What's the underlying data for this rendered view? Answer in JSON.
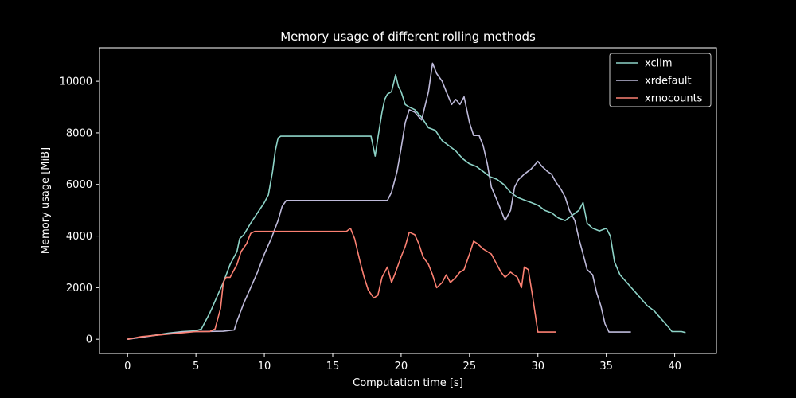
{
  "chart_data": {
    "type": "line",
    "title": "Memory usage of different rolling methods",
    "xlabel": "Computation time [s]",
    "ylabel": "Memory usage [MiB]",
    "xlim": [
      -2.05,
      43.05
    ],
    "ylim": [
      -550,
      11300
    ],
    "xticks": [
      0,
      5,
      10,
      15,
      20,
      25,
      30,
      35,
      40
    ],
    "yticks": [
      0,
      2000,
      4000,
      6000,
      8000,
      10000
    ],
    "grid": false,
    "legend_position": "top-right",
    "series": [
      {
        "name": "xclim",
        "color": "#8dd3c7",
        "points": [
          [
            0,
            0
          ],
          [
            1,
            80
          ],
          [
            2,
            160
          ],
          [
            3,
            240
          ],
          [
            4,
            300
          ],
          [
            5,
            330
          ],
          [
            5.4,
            400
          ],
          [
            6,
            1000
          ],
          [
            6.5,
            1600
          ],
          [
            7,
            2200
          ],
          [
            7.5,
            2900
          ],
          [
            8,
            3400
          ],
          [
            8.2,
            3900
          ],
          [
            8.5,
            4050
          ],
          [
            9,
            4500
          ],
          [
            9.5,
            4900
          ],
          [
            10,
            5300
          ],
          [
            10.3,
            5600
          ],
          [
            10.6,
            6500
          ],
          [
            10.8,
            7300
          ],
          [
            11,
            7800
          ],
          [
            11.2,
            7870
          ],
          [
            12,
            7870
          ],
          [
            14,
            7870
          ],
          [
            16,
            7870
          ],
          [
            17.8,
            7870
          ],
          [
            18.1,
            7100
          ],
          [
            18.3,
            7800
          ],
          [
            18.6,
            8800
          ],
          [
            18.8,
            9300
          ],
          [
            19,
            9500
          ],
          [
            19.3,
            9600
          ],
          [
            19.6,
            10250
          ],
          [
            19.8,
            9800
          ],
          [
            20,
            9600
          ],
          [
            20.3,
            9100
          ],
          [
            20.6,
            9000
          ],
          [
            21,
            8900
          ],
          [
            21.5,
            8600
          ],
          [
            22,
            8200
          ],
          [
            22.5,
            8100
          ],
          [
            23,
            7700
          ],
          [
            23.5,
            7500
          ],
          [
            24,
            7300
          ],
          [
            24.5,
            7000
          ],
          [
            25,
            6800
          ],
          [
            25.5,
            6700
          ],
          [
            26,
            6500
          ],
          [
            26.5,
            6300
          ],
          [
            27,
            6200
          ],
          [
            27.5,
            6000
          ],
          [
            28,
            5700
          ],
          [
            28.5,
            5500
          ],
          [
            29,
            5400
          ],
          [
            29.5,
            5300
          ],
          [
            30,
            5200
          ],
          [
            30.5,
            5000
          ],
          [
            31,
            4900
          ],
          [
            31.5,
            4700
          ],
          [
            32,
            4600
          ],
          [
            32.5,
            4800
          ],
          [
            33,
            5000
          ],
          [
            33.3,
            5300
          ],
          [
            33.6,
            4500
          ],
          [
            34,
            4300
          ],
          [
            34.5,
            4200
          ],
          [
            35,
            4300
          ],
          [
            35.3,
            4000
          ],
          [
            35.6,
            3000
          ],
          [
            36,
            2500
          ],
          [
            36.5,
            2200
          ],
          [
            37,
            1900
          ],
          [
            37.5,
            1600
          ],
          [
            38,
            1300
          ],
          [
            38.5,
            1100
          ],
          [
            39,
            800
          ],
          [
            39.5,
            500
          ],
          [
            39.8,
            300
          ],
          [
            40.5,
            300
          ],
          [
            40.8,
            260
          ]
        ]
      },
      {
        "name": "xrdefault",
        "color": "#bebada",
        "points": [
          [
            0,
            0
          ],
          [
            2,
            150
          ],
          [
            4,
            280
          ],
          [
            5,
            300
          ],
          [
            7,
            310
          ],
          [
            7.8,
            360
          ],
          [
            8,
            700
          ],
          [
            8.5,
            1400
          ],
          [
            9,
            2000
          ],
          [
            9.5,
            2600
          ],
          [
            10,
            3300
          ],
          [
            10.5,
            3900
          ],
          [
            11,
            4600
          ],
          [
            11.3,
            5150
          ],
          [
            11.6,
            5380
          ],
          [
            13,
            5380
          ],
          [
            15,
            5380
          ],
          [
            17,
            5380
          ],
          [
            19,
            5380
          ],
          [
            19.3,
            5700
          ],
          [
            19.7,
            6500
          ],
          [
            20,
            7400
          ],
          [
            20.3,
            8400
          ],
          [
            20.6,
            8900
          ],
          [
            21,
            8800
          ],
          [
            21.5,
            8500
          ],
          [
            22,
            9600
          ],
          [
            22.3,
            10700
          ],
          [
            22.6,
            10300
          ],
          [
            23,
            10000
          ],
          [
            23.3,
            9600
          ],
          [
            23.7,
            9100
          ],
          [
            24,
            9300
          ],
          [
            24.3,
            9100
          ],
          [
            24.6,
            9400
          ],
          [
            25,
            8400
          ],
          [
            25.3,
            7900
          ],
          [
            25.7,
            7900
          ],
          [
            26,
            7500
          ],
          [
            26.3,
            6800
          ],
          [
            26.6,
            5900
          ],
          [
            27,
            5400
          ],
          [
            27.3,
            5000
          ],
          [
            27.6,
            4600
          ],
          [
            28,
            5000
          ],
          [
            28.3,
            5900
          ],
          [
            28.6,
            6200
          ],
          [
            29,
            6400
          ],
          [
            29.5,
            6600
          ],
          [
            30,
            6900
          ],
          [
            30.3,
            6700
          ],
          [
            30.7,
            6500
          ],
          [
            31,
            6400
          ],
          [
            31.3,
            6100
          ],
          [
            31.7,
            5800
          ],
          [
            32,
            5500
          ],
          [
            32.3,
            5000
          ],
          [
            32.7,
            4600
          ],
          [
            33,
            3900
          ],
          [
            33.3,
            3300
          ],
          [
            33.6,
            2700
          ],
          [
            34,
            2500
          ],
          [
            34.3,
            1800
          ],
          [
            34.6,
            1300
          ],
          [
            34.9,
            600
          ],
          [
            35.2,
            280
          ],
          [
            36.8,
            280
          ]
        ]
      },
      {
        "name": "xrnocounts",
        "color": "#fb8072",
        "points": [
          [
            0,
            0
          ],
          [
            1,
            100
          ],
          [
            2,
            150
          ],
          [
            3,
            200
          ],
          [
            4,
            250
          ],
          [
            5,
            300
          ],
          [
            6,
            300
          ],
          [
            6.4,
            400
          ],
          [
            6.8,
            1200
          ],
          [
            7,
            2200
          ],
          [
            7.2,
            2400
          ],
          [
            7.5,
            2400
          ],
          [
            8,
            2900
          ],
          [
            8.3,
            3400
          ],
          [
            8.7,
            3700
          ],
          [
            9,
            4100
          ],
          [
            9.3,
            4180
          ],
          [
            10,
            4180
          ],
          [
            12,
            4180
          ],
          [
            14,
            4180
          ],
          [
            16,
            4180
          ],
          [
            16.3,
            4300
          ],
          [
            16.6,
            3900
          ],
          [
            17,
            3000
          ],
          [
            17.3,
            2400
          ],
          [
            17.6,
            1900
          ],
          [
            18,
            1600
          ],
          [
            18.3,
            1700
          ],
          [
            18.6,
            2400
          ],
          [
            19,
            2800
          ],
          [
            19.3,
            2200
          ],
          [
            19.6,
            2600
          ],
          [
            20,
            3200
          ],
          [
            20.3,
            3600
          ],
          [
            20.6,
            4150
          ],
          [
            21,
            4050
          ],
          [
            21.3,
            3700
          ],
          [
            21.6,
            3200
          ],
          [
            22,
            2900
          ],
          [
            22.3,
            2500
          ],
          [
            22.6,
            2000
          ],
          [
            23,
            2200
          ],
          [
            23.3,
            2500
          ],
          [
            23.6,
            2200
          ],
          [
            24,
            2400
          ],
          [
            24.3,
            2600
          ],
          [
            24.6,
            2700
          ],
          [
            25,
            3300
          ],
          [
            25.3,
            3800
          ],
          [
            25.6,
            3700
          ],
          [
            26,
            3500
          ],
          [
            26.3,
            3400
          ],
          [
            26.6,
            3300
          ],
          [
            27,
            2900
          ],
          [
            27.3,
            2600
          ],
          [
            27.6,
            2400
          ],
          [
            28,
            2600
          ],
          [
            28.5,
            2400
          ],
          [
            28.8,
            2000
          ],
          [
            29,
            2800
          ],
          [
            29.3,
            2700
          ],
          [
            29.6,
            1700
          ],
          [
            30,
            280
          ],
          [
            31.3,
            280
          ]
        ]
      }
    ]
  }
}
